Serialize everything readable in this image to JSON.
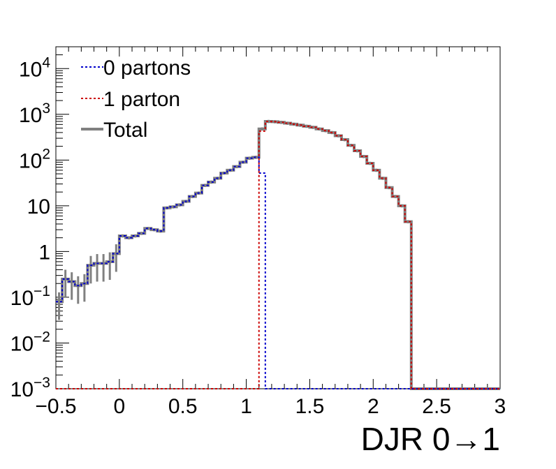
{
  "chart_data": {
    "type": "line",
    "xlabel": "DJR 0→1",
    "ylabel": "",
    "xlim": [
      -0.5,
      3.0
    ],
    "ylim": [
      0.001,
      30000
    ],
    "yscale": "log",
    "grid": false,
    "legend_position": "top-left",
    "x_ticks": [
      -0.5,
      0,
      0.5,
      1,
      1.5,
      2,
      2.5,
      3
    ],
    "x_tick_labels": [
      "−0.5",
      "0",
      "0.5",
      "1",
      "1.5",
      "2",
      "2.5",
      "3"
    ],
    "y_ticks": [
      {
        "value": 0.001,
        "base": "10",
        "exp": "−3"
      },
      {
        "value": 0.01,
        "base": "10",
        "exp": "−2"
      },
      {
        "value": 0.1,
        "base": "10",
        "exp": "−1"
      },
      {
        "value": 1,
        "base": "1",
        "exp": ""
      },
      {
        "value": 10,
        "base": "10",
        "exp": ""
      },
      {
        "value": 100,
        "base": "10",
        "exp": "2"
      },
      {
        "value": 1000,
        "base": "10",
        "exp": "3"
      },
      {
        "value": 10000,
        "base": "10",
        "exp": "4"
      }
    ],
    "bin_edges": [
      -0.5,
      -0.45,
      -0.4,
      -0.35,
      -0.3,
      -0.25,
      -0.2,
      -0.15,
      -0.1,
      -0.05,
      0,
      0.05,
      0.1,
      0.15,
      0.2,
      0.25,
      0.3,
      0.35,
      0.4,
      0.45,
      0.5,
      0.55,
      0.6,
      0.65,
      0.7,
      0.75,
      0.8,
      0.85,
      0.9,
      0.95,
      1,
      1.05,
      1.1,
      1.15,
      1.2,
      1.25,
      1.3,
      1.35,
      1.4,
      1.45,
      1.5,
      1.55,
      1.6,
      1.65,
      1.7,
      1.75,
      1.8,
      1.85,
      1.9,
      1.95,
      2,
      2.05,
      2.1,
      2.15,
      2.2,
      2.25,
      2.3,
      2.35,
      2.4,
      2.45,
      2.5,
      2.55,
      2.6,
      2.65,
      2.7,
      2.75,
      2.8,
      2.85,
      2.9,
      2.95,
      3
    ],
    "series": [
      {
        "name": "0 partons",
        "color": "#0000cc",
        "style": "dotted",
        "values": [
          0.08,
          0.25,
          0.22,
          0.18,
          0.2,
          0.5,
          0.55,
          0.55,
          0.6,
          0.9,
          2.2,
          2.0,
          2.2,
          2.5,
          3.2,
          3.0,
          2.8,
          9.0,
          9.5,
          10.5,
          12.5,
          16.0,
          19.0,
          28.0,
          33.0,
          40.0,
          52.0,
          60.0,
          72.0,
          90.0,
          110.0,
          115.0,
          52.0,
          0,
          0,
          0,
          0,
          0,
          0,
          0,
          0,
          0,
          0,
          0,
          0,
          0,
          0,
          0,
          0,
          0,
          0,
          0,
          0,
          0,
          0,
          0,
          0,
          0,
          0,
          0,
          0,
          0,
          0,
          0,
          0,
          0,
          0,
          0,
          0,
          0
        ]
      },
      {
        "name": "1 parton",
        "color": "#cc0000",
        "style": "dotted",
        "values": [
          0,
          0,
          0,
          0,
          0,
          0,
          0,
          0,
          0,
          0,
          0,
          0,
          0,
          0,
          0,
          0,
          0,
          0,
          0,
          0,
          0,
          0,
          0,
          0,
          0,
          0,
          0,
          0,
          0,
          0,
          0,
          0,
          430.0,
          700.0,
          690.0,
          670.0,
          640.0,
          610.0,
          580.0,
          550.0,
          520.0,
          480.0,
          440.0,
          400.0,
          340.0,
          280.0,
          210.0,
          160.0,
          120.0,
          85.0,
          60.0,
          40.0,
          25.0,
          16.0,
          10.0,
          4.5,
          0,
          0,
          0,
          0,
          0,
          0,
          0,
          0,
          0,
          0,
          0,
          0,
          0,
          0
        ]
      },
      {
        "name": "Total",
        "color": "#808080",
        "style": "solid",
        "values": [
          0.08,
          0.25,
          0.22,
          0.18,
          0.2,
          0.5,
          0.55,
          0.55,
          0.6,
          0.9,
          2.2,
          2.0,
          2.2,
          2.5,
          3.2,
          3.0,
          2.8,
          9.0,
          9.5,
          10.5,
          12.5,
          16.0,
          19.0,
          28.0,
          33.0,
          40.0,
          52.0,
          60.0,
          72.0,
          90.0,
          110.0,
          115.0,
          480.0,
          700.0,
          690.0,
          670.0,
          640.0,
          610.0,
          580.0,
          550.0,
          520.0,
          480.0,
          440.0,
          400.0,
          340.0,
          280.0,
          210.0,
          160.0,
          120.0,
          85.0,
          60.0,
          40.0,
          25.0,
          16.0,
          10.0,
          4.5,
          0,
          0,
          0,
          0,
          0,
          0,
          0,
          0,
          0,
          0,
          0,
          0,
          0,
          0
        ]
      }
    ]
  }
}
